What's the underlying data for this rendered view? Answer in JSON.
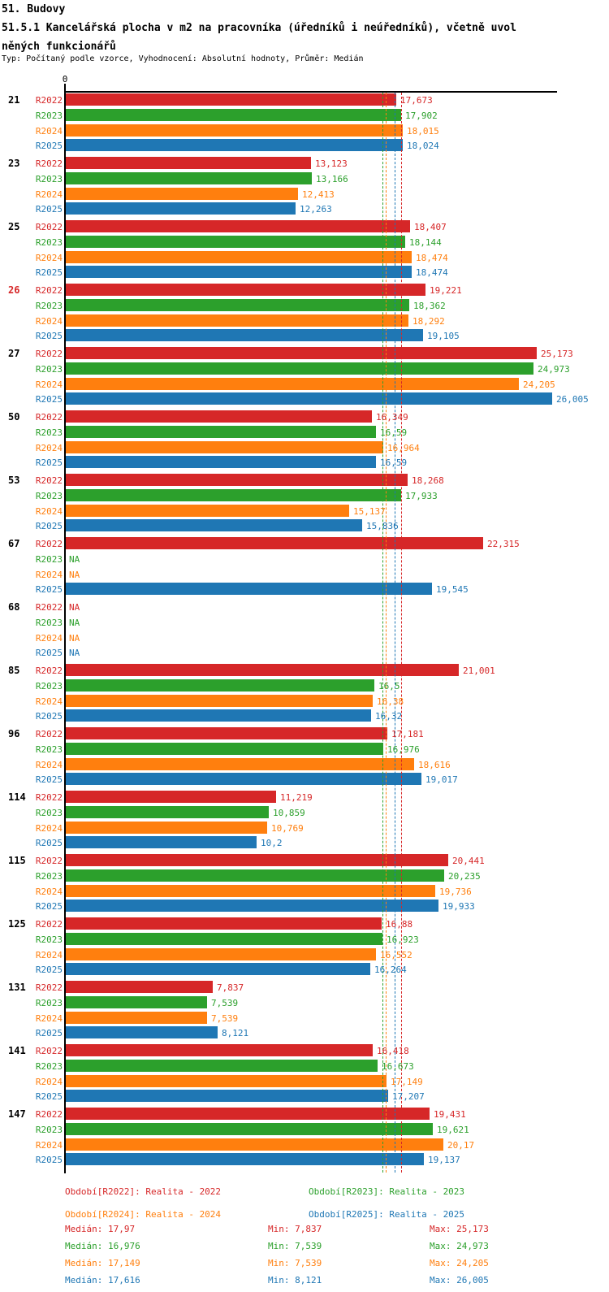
{
  "header": {
    "title_line1": "51. Budovy",
    "title_line2": "51.5.1 Kancelářská plocha v m2 na pracovníka (úředníků i neúředníků), včetně uvol",
    "title_line3": "něných funkcionářů",
    "subtitle": "Typ: Počítaný podle vzorce, Vyhodnocení: Absolutní hodnoty, Průměr: Medián"
  },
  "colors": {
    "r2022": "#d62728",
    "r2023": "#2ca02c",
    "r2024": "#ff7f0e",
    "r2025": "#1f77b4",
    "highlight_group": "#d62728",
    "text": "#000000"
  },
  "chart_data": {
    "type": "bar",
    "orientation": "horizontal",
    "title": "51.5.1 Kancelářská plocha v m2 na pracovníka (úředníků i neúředníků), včetně uvolněných funkcionářů",
    "series_names": [
      "R2022",
      "R2023",
      "R2024",
      "R2025"
    ],
    "series_colors": [
      "#d62728",
      "#2ca02c",
      "#ff7f0e",
      "#1f77b4"
    ],
    "axis": {
      "min": 0,
      "zero_label": "0",
      "max": 26.3,
      "grid": false
    },
    "value_format": "decimal-comma",
    "na_label": "NA",
    "median_lines": [
      {
        "series": "R2023",
        "value": 16.976,
        "color": "#2ca02c"
      },
      {
        "series": "R2024",
        "value": 17.149,
        "color": "#ff7f0e"
      },
      {
        "series": "R2025",
        "value": 17.616,
        "color": "#1f77b4"
      },
      {
        "series": "R2022",
        "value": 17.97,
        "color": "#d62728"
      }
    ],
    "groups": [
      {
        "id": "21",
        "highlight": false,
        "values": [
          17.673,
          17.902,
          18.015,
          18.024
        ],
        "value_labels": [
          "17,673",
          "17,902",
          "18,015",
          "18,024"
        ]
      },
      {
        "id": "23",
        "highlight": false,
        "values": [
          13.123,
          13.166,
          12.413,
          12.263
        ],
        "value_labels": [
          "13,123",
          "13,166",
          "12,413",
          "12,263"
        ]
      },
      {
        "id": "25",
        "highlight": false,
        "values": [
          18.407,
          18.144,
          18.474,
          18.474
        ],
        "value_labels": [
          "18,407",
          "18,144",
          "18,474",
          "18,474"
        ]
      },
      {
        "id": "26",
        "highlight": true,
        "values": [
          19.221,
          18.362,
          18.292,
          19.105
        ],
        "value_labels": [
          "19,221",
          "18,362",
          "18,292",
          "19,105"
        ]
      },
      {
        "id": "27",
        "highlight": false,
        "values": [
          25.173,
          24.973,
          24.205,
          26.005
        ],
        "value_labels": [
          "25,173",
          "24,973",
          "24,205",
          "26,005"
        ]
      },
      {
        "id": "50",
        "highlight": false,
        "values": [
          16.349,
          16.59,
          16.964,
          16.59
        ],
        "value_labels": [
          "16,349",
          "16,59",
          "16,964",
          "16,59"
        ]
      },
      {
        "id": "53",
        "highlight": false,
        "values": [
          18.268,
          17.933,
          15.137,
          15.836
        ],
        "value_labels": [
          "18,268",
          "17,933",
          "15,137",
          "15,836"
        ]
      },
      {
        "id": "67",
        "highlight": false,
        "values": [
          22.315,
          null,
          null,
          19.545
        ],
        "value_labels": [
          "22,315",
          "NA",
          "NA",
          "19,545"
        ]
      },
      {
        "id": "68",
        "highlight": false,
        "values": [
          null,
          null,
          null,
          null
        ],
        "value_labels": [
          "NA",
          "NA",
          "NA",
          "NA"
        ]
      },
      {
        "id": "85",
        "highlight": false,
        "values": [
          21.001,
          16.5,
          16.38,
          16.32
        ],
        "value_labels": [
          "21,001",
          "16,5",
          "16,38",
          "16,32"
        ]
      },
      {
        "id": "96",
        "highlight": false,
        "values": [
          17.181,
          16.976,
          18.616,
          19.017
        ],
        "value_labels": [
          "17,181",
          "16,976",
          "18,616",
          "19,017"
        ]
      },
      {
        "id": "114",
        "highlight": false,
        "values": [
          11.219,
          10.859,
          10.769,
          10.2
        ],
        "value_labels": [
          "11,219",
          "10,859",
          "10,769",
          "10,2"
        ]
      },
      {
        "id": "115",
        "highlight": false,
        "values": [
          20.441,
          20.235,
          19.736,
          19.933
        ],
        "value_labels": [
          "20,441",
          "20,235",
          "19,736",
          "19,933"
        ]
      },
      {
        "id": "125",
        "highlight": false,
        "values": [
          16.88,
          16.923,
          16.552,
          16.264
        ],
        "value_labels": [
          "16,88",
          "16,923",
          "16,552",
          "16,264"
        ]
      },
      {
        "id": "131",
        "highlight": false,
        "values": [
          7.837,
          7.539,
          7.539,
          8.121
        ],
        "value_labels": [
          "7,837",
          "7,539",
          "7,539",
          "8,121"
        ]
      },
      {
        "id": "141",
        "highlight": false,
        "values": [
          16.418,
          16.673,
          17.149,
          17.207
        ],
        "value_labels": [
          "16,418",
          "16,673",
          "17,149",
          "17,207"
        ]
      },
      {
        "id": "147",
        "highlight": false,
        "values": [
          19.431,
          19.621,
          20.17,
          19.137
        ],
        "value_labels": [
          "19,431",
          "19,621",
          "20,17",
          "19,137"
        ]
      }
    ]
  },
  "legend": {
    "items": [
      {
        "label": "Období[R2022]: Realita - 2022",
        "color": "#d62728"
      },
      {
        "label": "Období[R2023]: Realita - 2023",
        "color": "#2ca02c"
      },
      {
        "label": "Období[R2024]: Realita - 2024",
        "color": "#ff7f0e"
      },
      {
        "label": "Období[R2025]: Realita - 2025",
        "color": "#1f77b4"
      }
    ]
  },
  "stats": {
    "rows": [
      {
        "median": "Medián: 17,97",
        "min": "Min: 7,837",
        "max": "Max: 25,173",
        "color": "#d62728"
      },
      {
        "median": "Medián: 16,976",
        "min": "Min: 7,539",
        "max": "Max: 24,973",
        "color": "#2ca02c"
      },
      {
        "median": "Medián: 17,149",
        "min": "Min: 7,539",
        "max": "Max: 24,205",
        "color": "#ff7f0e"
      },
      {
        "median": "Medián: 17,616",
        "min": "Min: 8,121",
        "max": "Max: 26,005",
        "color": "#1f77b4"
      }
    ]
  }
}
